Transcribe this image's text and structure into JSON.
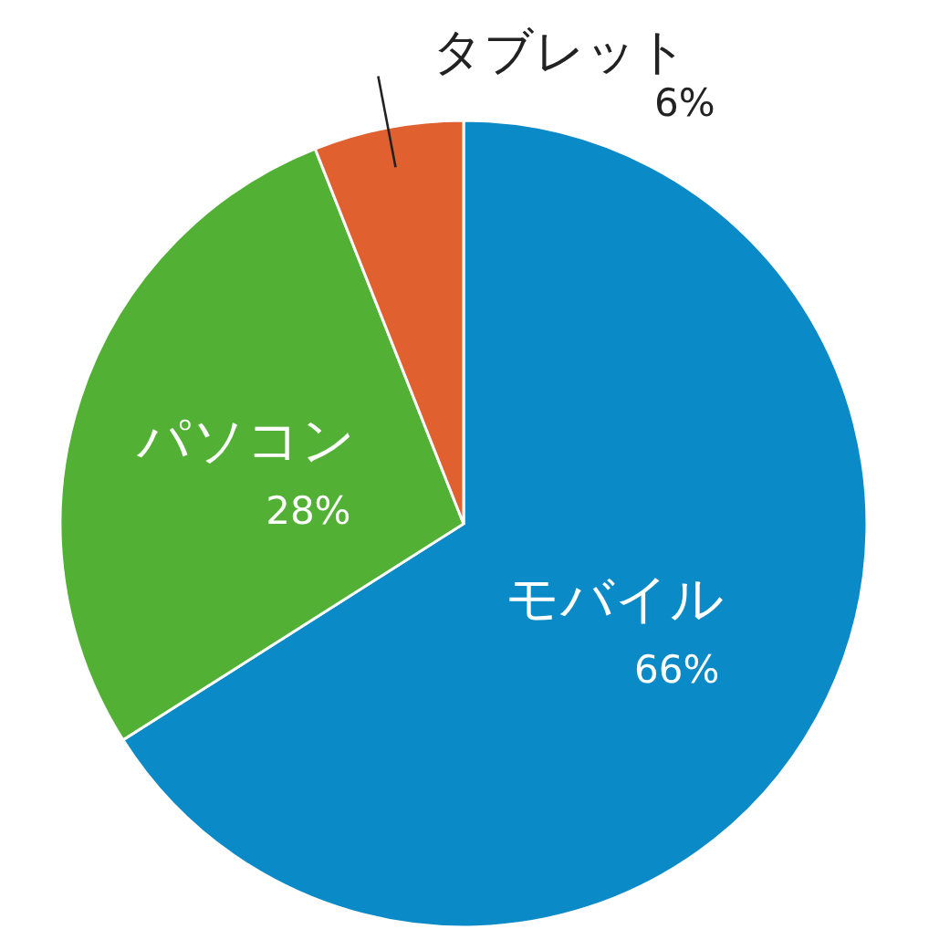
{
  "chart_data": {
    "type": "pie",
    "categories": [
      "モバイル",
      "パソコン",
      "タブレット"
    ],
    "values": [
      66,
      28,
      6
    ],
    "colors": [
      "#0a8ac6",
      "#52b135",
      "#e06030"
    ],
    "value_labels": [
      "66%",
      "28%",
      "6%"
    ]
  }
}
